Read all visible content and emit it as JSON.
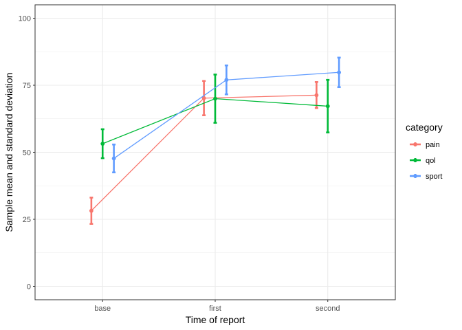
{
  "chart_data": {
    "type": "line",
    "xlabel": "Time of report",
    "ylabel": "Sample mean and standard deviation",
    "categories": [
      "base",
      "first",
      "second"
    ],
    "ylim": [
      -5,
      105
    ],
    "yticks": [
      0,
      25,
      50,
      75,
      100
    ],
    "grid": true,
    "legend": {
      "title": "category",
      "position": "right"
    },
    "series": [
      {
        "name": "pain",
        "color": "#F8766D",
        "values": [
          28.2,
          70.2,
          71.3
        ],
        "lower": [
          23.3,
          63.8,
          66.5
        ],
        "upper": [
          33.1,
          76.6,
          76.2
        ]
      },
      {
        "name": "qol",
        "color": "#00BA38",
        "values": [
          53.2,
          70.0,
          67.2
        ],
        "lower": [
          47.8,
          61.0,
          57.4
        ],
        "upper": [
          58.6,
          79.0,
          77.0
        ]
      },
      {
        "name": "sport",
        "color": "#619CFF",
        "values": [
          47.7,
          77.0,
          79.8
        ],
        "lower": [
          42.5,
          71.6,
          74.3
        ],
        "upper": [
          52.9,
          82.4,
          85.3
        ]
      }
    ]
  }
}
